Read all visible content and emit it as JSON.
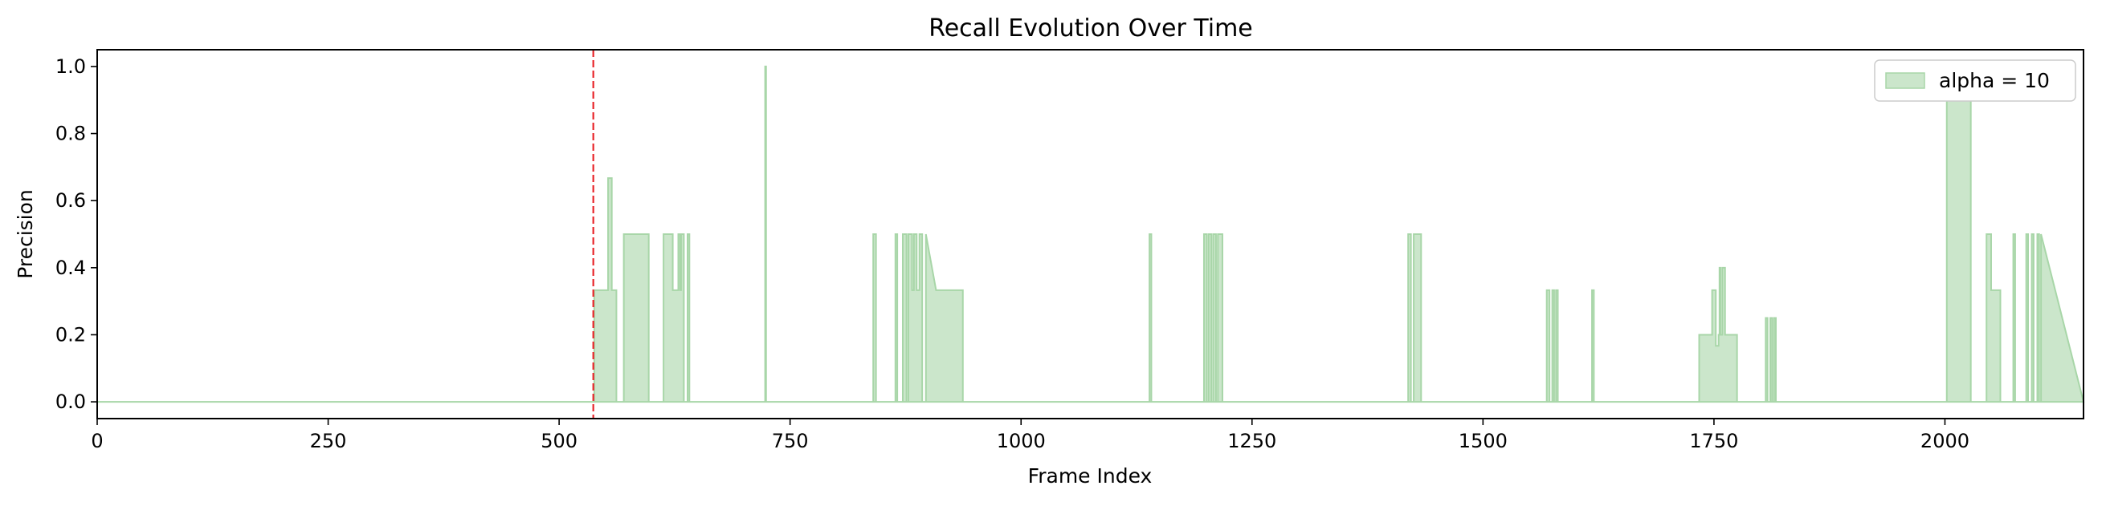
{
  "chart_data": {
    "type": "area",
    "title": "Recall Evolution Over Time",
    "xlabel": "Frame Index",
    "ylabel": "Precision",
    "xlim": [
      0,
      2150
    ],
    "ylim": [
      -0.05,
      1.05
    ],
    "xticks": [
      0,
      250,
      500,
      750,
      1000,
      1250,
      1500,
      1750,
      2000
    ],
    "yticks": [
      0.0,
      0.2,
      0.4,
      0.6,
      0.8,
      1.0
    ],
    "ytick_labels": [
      "0.0",
      "0.2",
      "0.4",
      "0.6",
      "0.8",
      "1.0"
    ],
    "grid": false,
    "legend_position": "upper right",
    "vline": {
      "x": 537,
      "color": "#e8262b",
      "style": "dashed"
    },
    "series": [
      {
        "name": "alpha = 10",
        "color": "#a8d6a8",
        "fill_alpha": 0.6,
        "x": [
          0,
          537,
          538,
          538,
          553,
          553,
          557,
          557,
          562,
          562,
          570,
          570,
          572,
          572,
          597,
          597,
          613,
          613,
          618,
          618,
          623,
          623,
          629,
          629,
          631,
          631,
          632,
          632,
          635,
          635,
          639,
          639,
          641,
          641,
          723,
          723,
          724,
          724,
          840,
          840,
          843,
          843,
          864,
          864,
          866,
          866,
          872,
          872,
          876,
          876,
          878,
          878,
          882,
          882,
          884,
          884,
          887,
          887,
          890,
          890,
          893,
          893,
          897,
          897,
          908,
          908,
          932,
          932,
          937,
          937,
          1139,
          1139,
          1141,
          1141,
          1198,
          1198,
          1201,
          1201,
          1203,
          1203,
          1206,
          1206,
          1208,
          1208,
          1211,
          1211,
          1213,
          1213,
          1218,
          1218,
          1419,
          1419,
          1422,
          1422,
          1425,
          1425,
          1428,
          1428,
          1433,
          1433,
          1569,
          1569,
          1572,
          1572,
          1575,
          1575,
          1577,
          1577,
          1579,
          1579,
          1581,
          1581,
          1618,
          1618,
          1620,
          1620,
          1734,
          1734,
          1748,
          1748,
          1752,
          1752,
          1755,
          1755,
          1756,
          1756,
          1757,
          1757,
          1759,
          1759,
          1762,
          1762,
          1764,
          1764,
          1765,
          1765,
          1775,
          1775,
          1806,
          1806,
          1808,
          1808,
          1811,
          1811,
          1813,
          1813,
          1815,
          1815,
          1817,
          1817,
          2002,
          2002,
          2028,
          2028,
          2045,
          2045,
          2050,
          2050,
          2055,
          2055,
          2060,
          2060,
          2074,
          2074,
          2076,
          2076,
          2088,
          2088,
          2090,
          2090,
          2094,
          2094,
          2096,
          2096,
          2100,
          2100,
          2102,
          2102,
          2104,
          2104,
          2150
        ],
        "y": [
          0,
          0,
          0,
          0.333,
          0.333,
          0.667,
          0.667,
          0.333,
          0.333,
          0,
          0,
          0.5,
          0.5,
          0.5,
          0.5,
          0,
          0,
          0.5,
          0.5,
          0.5,
          0.5,
          0.333,
          0.333,
          0.5,
          0.5,
          0.333,
          0.333,
          0.5,
          0.5,
          0,
          0,
          0.5,
          0.5,
          0,
          0,
          1.0,
          1.0,
          0,
          0,
          0.5,
          0.5,
          0,
          0,
          0.5,
          0.5,
          0,
          0,
          0.5,
          0.5,
          0,
          0,
          0.5,
          0.5,
          0.333,
          0.333,
          0.5,
          0.5,
          0.333,
          0.333,
          0.5,
          0.5,
          0,
          0,
          0.5,
          0.333,
          0.333,
          0.333,
          0.333,
          0.333,
          0,
          0,
          0.5,
          0.5,
          0,
          0,
          0.5,
          0.5,
          0,
          0,
          0.5,
          0.5,
          0,
          0,
          0.5,
          0.5,
          0,
          0,
          0.5,
          0.5,
          0,
          0,
          0.5,
          0.5,
          0,
          0,
          0.5,
          0.5,
          0.5,
          0.5,
          0,
          0,
          0.333,
          0.333,
          0,
          0,
          0.333,
          0.333,
          0,
          0,
          0.333,
          0.333,
          0,
          0,
          0.333,
          0.333,
          0,
          0,
          0.2,
          0.2,
          0.333,
          0.333,
          0.167,
          0.167,
          0.2,
          0.2,
          0.4,
          0.4,
          0.2,
          0.2,
          0.4,
          0.4,
          0.2,
          0.2,
          0.2,
          0.2,
          0.2,
          0.2,
          0,
          0,
          0.25,
          0.25,
          0,
          0,
          0.25,
          0.25,
          0,
          0,
          0.25,
          0.25,
          0,
          0,
          1.0,
          1.0,
          0,
          0,
          0.5,
          0.5,
          0.333,
          0.333,
          0.333,
          0.333,
          0,
          0,
          0.5,
          0.5,
          0,
          0,
          0.5,
          0.5,
          0,
          0,
          0.5,
          0.5,
          0,
          0,
          0.5,
          0.5,
          0,
          0,
          0.5,
          0
        ]
      }
    ]
  }
}
